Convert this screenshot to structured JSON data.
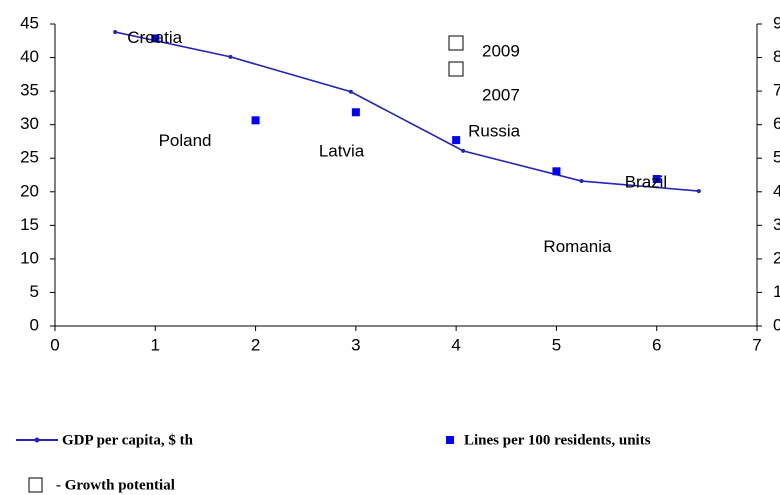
{
  "chart_data": {
    "type": "line",
    "xlim": [
      0,
      7
    ],
    "xticks": [
      0,
      1,
      2,
      3,
      4,
      5,
      6,
      7
    ],
    "ylim": [
      0,
      45
    ],
    "yticks": [
      0,
      5,
      10,
      15,
      20,
      25,
      30,
      35,
      40,
      45
    ],
    "y2lim": [
      0,
      9
    ],
    "y2ticks": [
      0,
      1,
      2,
      3,
      4,
      5,
      6,
      7,
      8,
      9
    ],
    "series": [
      {
        "name": "GDP per capita, $ th",
        "type": "line",
        "color": "#2424b8",
        "x": [
          0.6,
          1.75,
          2.95,
          4.07,
          5.25,
          6.42
        ],
        "values": [
          43.8,
          40.1,
          34.9,
          26.1,
          21.6,
          20.1
        ]
      },
      {
        "name": "Lines per 100 residents, units",
        "type": "scatter",
        "axis": "y2",
        "color": "#0000ff",
        "x": [
          1,
          2,
          3,
          4,
          5,
          6
        ],
        "values": [
          8.57,
          6.13,
          6.37,
          5.54,
          4.61,
          4.38
        ],
        "labels": [
          "Croatia",
          "Poland",
          "Latvia",
          "Russia",
          "Romania",
          "Brazil"
        ]
      }
    ],
    "annotations": [
      "2009",
      "2007"
    ],
    "growth_note": "- Growth potential"
  }
}
